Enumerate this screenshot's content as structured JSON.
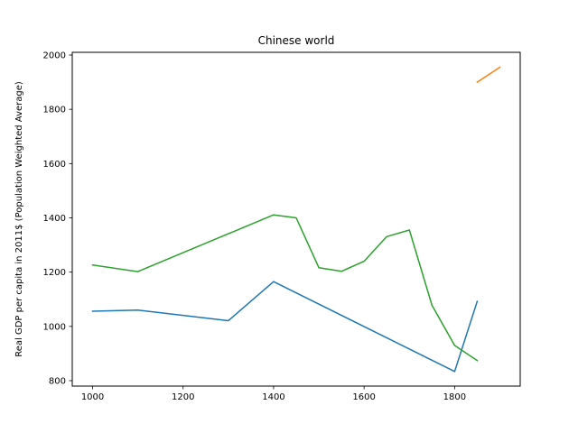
{
  "chart_data": {
    "type": "line",
    "title": "Chinese world",
    "xlabel": "",
    "ylabel": "Real GDP per capita in 2011$ (Population Weighted Average)",
    "xlim": [
      955,
      1945
    ],
    "ylim": [
      780,
      2010
    ],
    "xticks": [
      1000,
      1200,
      1400,
      1600,
      1800
    ],
    "yticks": [
      800,
      1000,
      1200,
      1400,
      1600,
      1800,
      2000
    ],
    "grid": false,
    "legend": "none",
    "series": [
      {
        "color": "#1f77b4",
        "x": [
          1000,
          1100,
          1300,
          1400,
          1800,
          1850
        ],
        "y": [
          1056,
          1060,
          1021,
          1165,
          834,
          1092
        ]
      },
      {
        "color": "#ff7f0e",
        "x": [
          1850,
          1900
        ],
        "y": [
          1900,
          1955
        ]
      },
      {
        "color": "#2ca02c",
        "x": [
          1000,
          1100,
          1400,
          1450,
          1500,
          1550,
          1600,
          1650,
          1700,
          1750,
          1800,
          1850
        ],
        "y": [
          1226,
          1202,
          1411,
          1400,
          1216,
          1203,
          1240,
          1331,
          1355,
          1078,
          930,
          874
        ]
      }
    ]
  }
}
